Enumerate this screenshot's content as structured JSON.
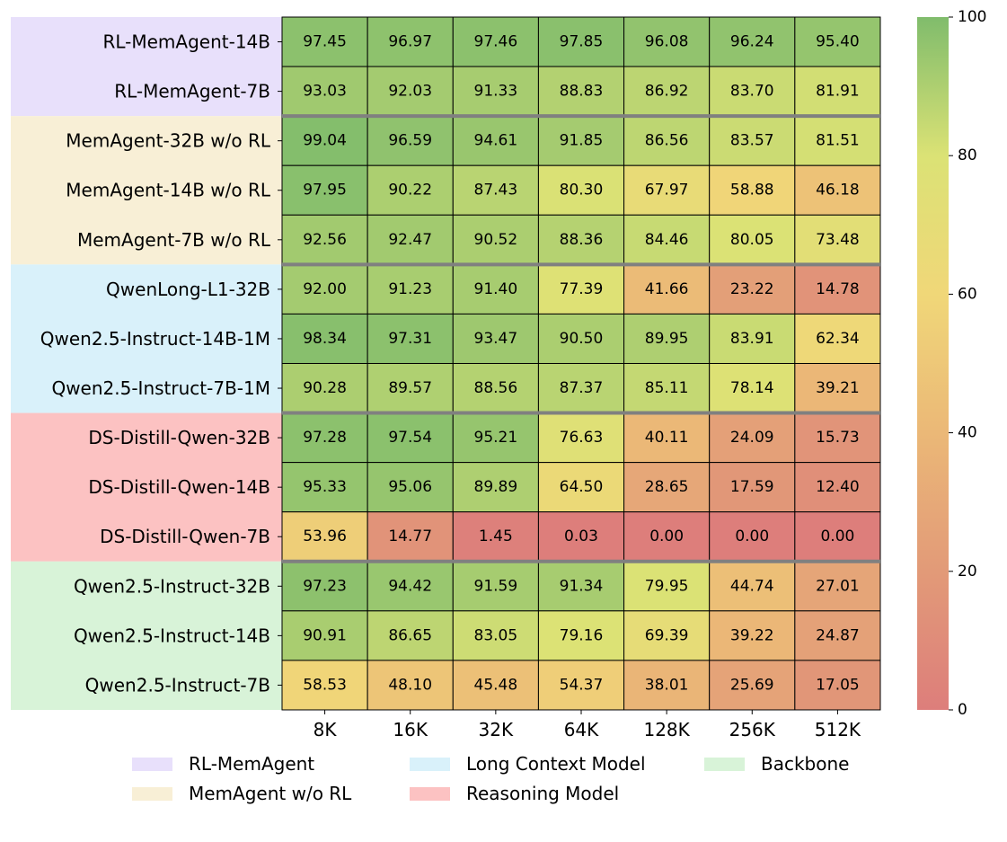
{
  "chart_data": {
    "type": "heatmap",
    "title": "",
    "xlabel": "",
    "ylabel": "",
    "x_categories": [
      "8K",
      "16K",
      "32K",
      "64K",
      "128K",
      "256K",
      "512K"
    ],
    "y_categories": [
      "RL-MemAgent-14B",
      "RL-MemAgent-7B",
      "MemAgent-32B w/o RL",
      "MemAgent-14B w/o RL",
      "MemAgent-7B w/o RL",
      "QwenLong-L1-32B",
      "Qwen2.5-Instruct-14B-1M",
      "Qwen2.5-Instruct-7B-1M",
      "DS-Distill-Qwen-32B",
      "DS-Distill-Qwen-14B",
      "DS-Distill-Qwen-7B",
      "Qwen2.5-Instruct-32B",
      "Qwen2.5-Instruct-14B",
      "Qwen2.5-Instruct-7B"
    ],
    "values": [
      [
        "97.45",
        "96.97",
        "97.46",
        "97.85",
        "96.08",
        "96.24",
        "95.40"
      ],
      [
        "93.03",
        "92.03",
        "91.33",
        "88.83",
        "86.92",
        "83.70",
        "81.91"
      ],
      [
        "99.04",
        "96.59",
        "94.61",
        "91.85",
        "86.56",
        "83.57",
        "81.51"
      ],
      [
        "97.95",
        "90.22",
        "87.43",
        "80.30",
        "67.97",
        "58.88",
        "46.18"
      ],
      [
        "92.56",
        "92.47",
        "90.52",
        "88.36",
        "84.46",
        "80.05",
        "73.48"
      ],
      [
        "92.00",
        "91.23",
        "91.40",
        "77.39",
        "41.66",
        "23.22",
        "14.78"
      ],
      [
        "98.34",
        "97.31",
        "93.47",
        "90.50",
        "89.95",
        "83.91",
        "62.34"
      ],
      [
        "90.28",
        "89.57",
        "88.56",
        "87.37",
        "85.11",
        "78.14",
        "39.21"
      ],
      [
        "97.28",
        "97.54",
        "95.21",
        "76.63",
        "40.11",
        "24.09",
        "15.73"
      ],
      [
        "95.33",
        "95.06",
        "89.89",
        "64.50",
        "28.65",
        "17.59",
        "12.40"
      ],
      [
        "53.96",
        "14.77",
        "1.45",
        "0.03",
        "0.00",
        "0.00",
        "0.00"
      ],
      [
        "97.23",
        "94.42",
        "91.59",
        "91.34",
        "79.95",
        "44.74",
        "27.01"
      ],
      [
        "90.91",
        "86.65",
        "83.05",
        "79.16",
        "69.39",
        "39.22",
        "24.87"
      ],
      [
        "58.53",
        "48.10",
        "45.48",
        "54.37",
        "38.01",
        "25.69",
        "17.05"
      ]
    ],
    "groups": [
      {
        "name": "RL-MemAgent",
        "rows": [
          0,
          1
        ],
        "color": "#e8e0fb"
      },
      {
        "name": "MemAgent w/o RL",
        "rows": [
          2,
          3,
          4
        ],
        "color": "#f8efd6"
      },
      {
        "name": "Long Context Model",
        "rows": [
          5,
          6,
          7
        ],
        "color": "#d9f1fa"
      },
      {
        "name": "Reasoning Model",
        "rows": [
          8,
          9,
          10
        ],
        "color": "#fcc2c2"
      },
      {
        "name": "Backbone",
        "rows": [
          11,
          12,
          13
        ],
        "color": "#d8f3d8"
      }
    ],
    "colorbar": {
      "range": [
        0,
        100
      ],
      "ticks": [
        "0",
        "20",
        "40",
        "60",
        "80",
        "100"
      ],
      "stops": [
        {
          "value": 0,
          "color": "#dd7e7b"
        },
        {
          "value": 20,
          "color": "#e29a78"
        },
        {
          "value": 40,
          "color": "#ebb877"
        },
        {
          "value": 60,
          "color": "#f0d778"
        },
        {
          "value": 80,
          "color": "#dbe275"
        },
        {
          "value": 100,
          "color": "#80bc6c"
        }
      ]
    },
    "legend": {
      "placement": "bottom",
      "order": [
        "RL-MemAgent",
        "Long Context Model",
        "Backbone",
        "MemAgent w/o RL",
        "Reasoning Model"
      ]
    },
    "group_separator_color": "#808080"
  }
}
